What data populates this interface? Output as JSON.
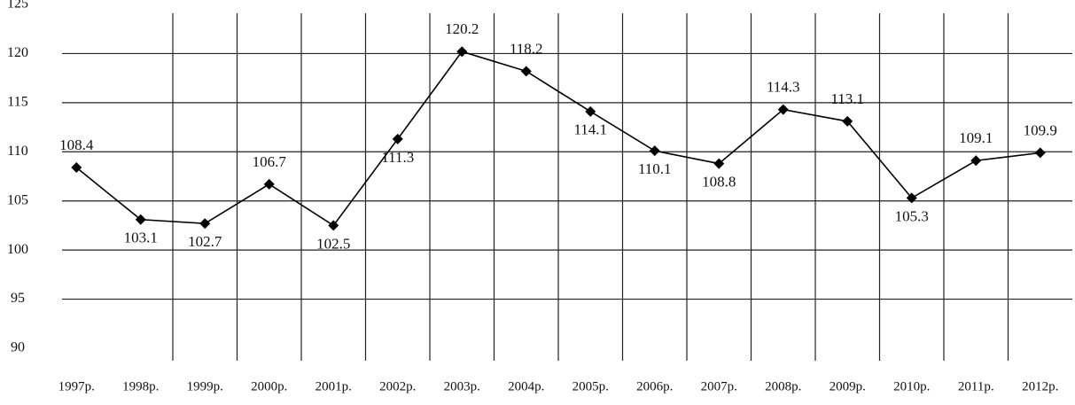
{
  "chart_data": {
    "type": "line",
    "categories": [
      "1997р.",
      "1998р.",
      "1999р.",
      "2000р.",
      "2001р.",
      "2002р.",
      "2003р.",
      "2004р.",
      "2005р.",
      "2006р.",
      "2007р.",
      "2008р.",
      "2009р.",
      "2010р.",
      "2011р.",
      "2012р."
    ],
    "values": [
      108.4,
      103.1,
      102.7,
      106.7,
      102.5,
      111.3,
      120.2,
      118.2,
      114.1,
      110.1,
      108.8,
      114.3,
      113.1,
      105.3,
      109.1,
      109.9
    ],
    "color": "#000000",
    "ylim": [
      90,
      125
    ],
    "yticks": [
      90,
      95,
      100,
      105,
      110,
      115,
      120,
      125
    ],
    "grid": true
  }
}
